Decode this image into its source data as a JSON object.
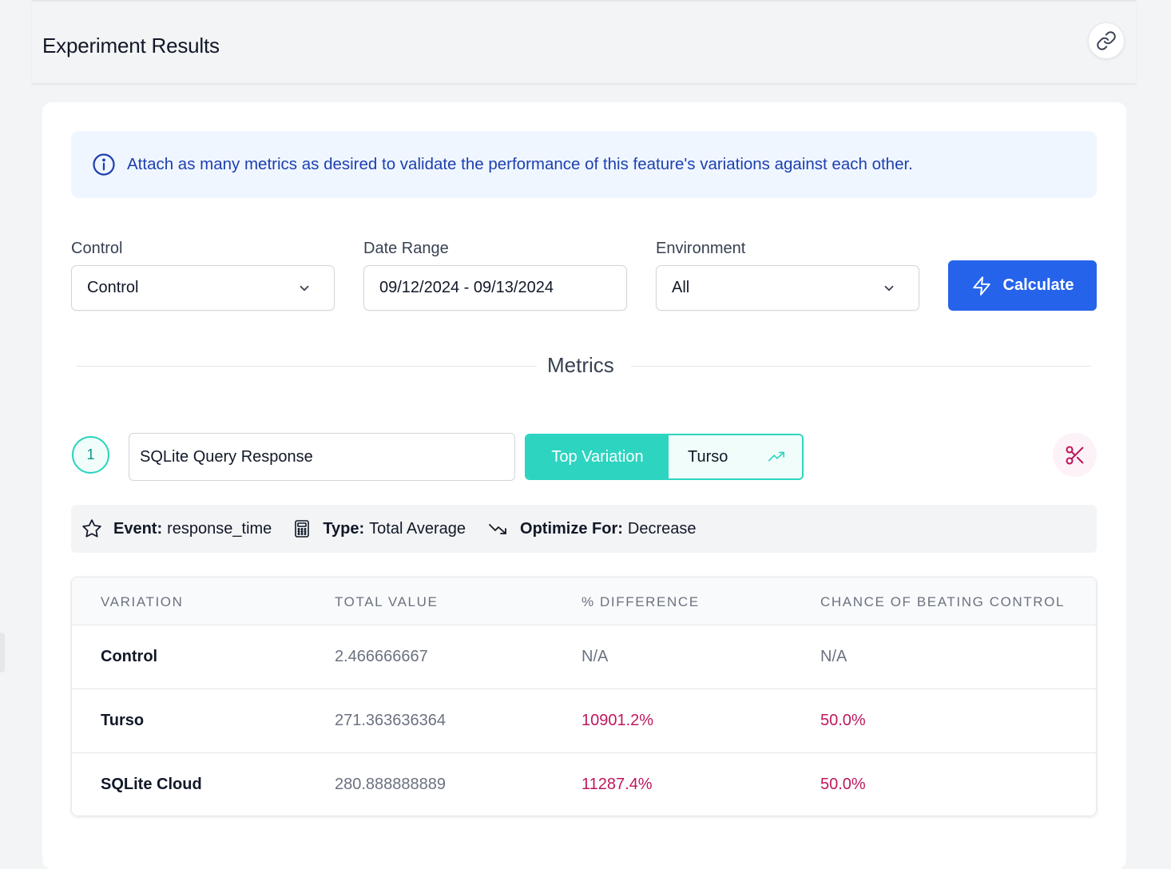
{
  "header": {
    "title": "Experiment Results"
  },
  "info": {
    "message": "Attach as many metrics as desired to validate the performance of this feature's variations against each other."
  },
  "filters": {
    "control_label": "Control",
    "control_value": "Control",
    "date_label": "Date Range",
    "date_value": "09/12/2024 - 09/13/2024",
    "env_label": "Environment",
    "env_value": "All",
    "calculate_label": "Calculate"
  },
  "metrics_heading": "Metrics",
  "metric": {
    "number": "1",
    "name": "SQLite Query Response",
    "top_variation_label": "Top Variation",
    "top_variation_value": "Turso",
    "event_key": "Event:",
    "event_value": "response_time",
    "type_key": "Type:",
    "type_value": "Total Average",
    "optimize_key": "Optimize For:",
    "optimize_value": "Decrease"
  },
  "table": {
    "headers": [
      "VARIATION",
      "TOTAL VALUE",
      "% DIFFERENCE",
      "CHANCE OF BEATING CONTROL"
    ],
    "rows": [
      {
        "variation": "Control",
        "total": "2.466666667",
        "diff": "N/A",
        "chance": "N/A"
      },
      {
        "variation": "Turso",
        "total": "271.363636364",
        "diff": "10901.2%",
        "chance": "50.0%"
      },
      {
        "variation": "SQLite Cloud",
        "total": "280.888888889",
        "diff": "11287.4%",
        "chance": "50.0%"
      }
    ]
  },
  "colors": {
    "accent": "#2563eb",
    "teal": "#2dd4bf",
    "negative": "#be185d",
    "info_text": "#1e40af"
  },
  "icons": [
    "link-icon",
    "info-icon",
    "chevron-down-icon",
    "lightning-icon",
    "trending-up-icon",
    "scissors-icon",
    "star-icon",
    "calculator-icon",
    "trending-down-icon"
  ]
}
